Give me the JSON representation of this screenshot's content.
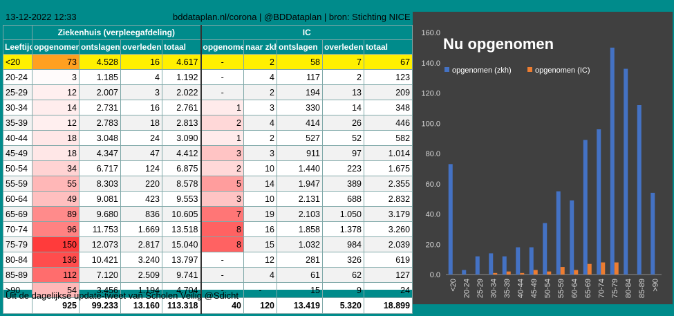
{
  "header": {
    "timestamp": "13-12-2022 12:33",
    "source": "bddataplan.nl/corona | @BDDataplan | bron: Stichting NICE"
  },
  "table": {
    "group_headers": {
      "hospital": "Ziekenhuis (verpleegafdeling)",
      "ic": "IC"
    },
    "columns": [
      "Leeftijd",
      "opgenomen",
      "ontslagen",
      "overleden",
      "totaal",
      "opgenomen",
      "naar zkh",
      "ontslagen",
      "overleden",
      "totaal"
    ],
    "rows": [
      [
        "<20",
        "73",
        "4.528",
        "16",
        "4.617",
        "-",
        "2",
        "58",
        "7",
        "67"
      ],
      [
        "20-24",
        "3",
        "1.185",
        "4",
        "1.192",
        "-",
        "4",
        "117",
        "2",
        "123"
      ],
      [
        "25-29",
        "12",
        "2.007",
        "3",
        "2.022",
        "-",
        "2",
        "194",
        "13",
        "209"
      ],
      [
        "30-34",
        "14",
        "2.731",
        "16",
        "2.761",
        "1",
        "3",
        "330",
        "14",
        "348"
      ],
      [
        "35-39",
        "12",
        "2.783",
        "18",
        "2.813",
        "2",
        "4",
        "414",
        "26",
        "446"
      ],
      [
        "40-44",
        "18",
        "3.048",
        "24",
        "3.090",
        "1",
        "2",
        "527",
        "52",
        "582"
      ],
      [
        "45-49",
        "18",
        "4.347",
        "47",
        "4.412",
        "3",
        "3",
        "911",
        "97",
        "1.014"
      ],
      [
        "50-54",
        "34",
        "6.717",
        "124",
        "6.875",
        "2",
        "10",
        "1.440",
        "223",
        "1.675"
      ],
      [
        "55-59",
        "55",
        "8.303",
        "220",
        "8.578",
        "5",
        "14",
        "1.947",
        "389",
        "2.355"
      ],
      [
        "60-64",
        "49",
        "9.081",
        "423",
        "9.553",
        "3",
        "10",
        "2.131",
        "688",
        "2.832"
      ],
      [
        "65-69",
        "89",
        "9.680",
        "836",
        "10.605",
        "7",
        "19",
        "2.103",
        "1.050",
        "3.179"
      ],
      [
        "70-74",
        "96",
        "11.753",
        "1.669",
        "13.518",
        "8",
        "16",
        "1.858",
        "1.378",
        "3.260"
      ],
      [
        "75-79",
        "150",
        "12.073",
        "2.817",
        "15.040",
        "8",
        "15",
        "1.032",
        "984",
        "2.039"
      ],
      [
        "80-84",
        "136",
        "10.421",
        "3.240",
        "13.797",
        "-",
        "12",
        "281",
        "326",
        "619"
      ],
      [
        "85-89",
        "112",
        "7.120",
        "2.509",
        "9.741",
        "-",
        "4",
        "61",
        "62",
        "127"
      ],
      [
        ">90",
        "54",
        "3.456",
        "1.194",
        "4.704",
        "-",
        "-",
        "15",
        "9",
        "24"
      ]
    ],
    "totals": [
      "",
      "925",
      "99.233",
      "13.160",
      "113.318",
      "40",
      "120",
      "13.419",
      "5.320",
      "18.899"
    ]
  },
  "footer": "Uit de dagelijkse update-tweet van Scholen Veilig @Sdicht",
  "colors": {
    "teal": "#008b8b",
    "highlight": "#fff000",
    "hot": "#ff3b3b",
    "chart_bg": "#404040",
    "series_zkh": "#4472c4",
    "series_ic": "#ed7d31"
  },
  "chart_data": {
    "type": "bar",
    "title": "Nu opgenomen",
    "categories": [
      "<20",
      "20-24",
      "25-29",
      "30-34",
      "35-39",
      "40-44",
      "45-49",
      "50-54",
      "55-59",
      "60-64",
      "65-69",
      "70-74",
      "75-79",
      "80-84",
      "85-89",
      ">90"
    ],
    "series": [
      {
        "name": "opgenomen (zkh)",
        "values": [
          73,
          3,
          12,
          14,
          12,
          18,
          18,
          34,
          55,
          49,
          89,
          96,
          150,
          136,
          112,
          54
        ]
      },
      {
        "name": "opgenomen (IC)",
        "values": [
          0,
          0,
          0,
          1,
          2,
          1,
          3,
          2,
          5,
          3,
          7,
          8,
          8,
          0,
          0,
          0
        ]
      }
    ],
    "ylim": [
      0,
      160
    ],
    "yticks": [
      "0.0",
      "20.0",
      "40.0",
      "60.0",
      "80.0",
      "100.0",
      "120.0",
      "140.0",
      "160.0"
    ],
    "legend_position": "top-left",
    "grid": false
  }
}
